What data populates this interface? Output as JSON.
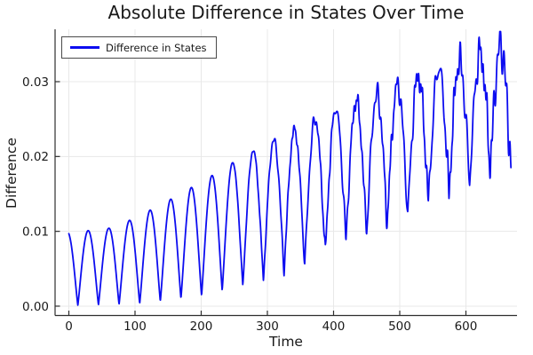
{
  "chart_data": {
    "type": "line",
    "title": "Absolute Difference in States Over Time",
    "xlabel": "Time",
    "ylabel": "Difference",
    "legend": {
      "position": "top-left",
      "entries": [
        {
          "label": "Difference in States",
          "color": "#0d0df0"
        }
      ]
    },
    "background": "#ffffff",
    "grid": true,
    "grid_color": "#e8e8e8",
    "axis_color": "#2e2e2e",
    "text_color": "#191919",
    "line_width": 1.8,
    "xlim": [
      -20.8,
      677.2
    ],
    "ylim": [
      -0.00125,
      0.037
    ],
    "xticks": [
      0,
      100,
      200,
      300,
      400,
      500,
      600
    ],
    "xtick_labels": [
      "0",
      "100",
      "200",
      "300",
      "400",
      "500",
      "600"
    ],
    "yticks": [
      0,
      0.01,
      0.02,
      0.03
    ],
    "ytick_labels": [
      "0.00",
      "0.01",
      "0.02",
      "0.03"
    ],
    "series": [
      {
        "name": "Difference in States",
        "color": "#0d0df0",
        "model": {
          "description": "abs-value oscillation reconstructed from envelopes read off the plot",
          "t_start": 0,
          "t_end": 668,
          "dt": 0.4,
          "period": 31.16,
          "peak_phase": -2,
          "cusp_sharpness": 1.12,
          "peak_envelope": [
            [
              0,
              0.0099
            ],
            [
              30,
              0.0101
            ],
            [
              60,
              0.0104
            ],
            [
              90,
              0.0114
            ],
            [
              120,
              0.0127
            ],
            [
              150,
              0.0141
            ],
            [
              180,
              0.0156
            ],
            [
              210,
              0.0171
            ],
            [
              240,
              0.0188
            ],
            [
              270,
              0.0205
            ],
            [
              300,
              0.022
            ],
            [
              330,
              0.0234
            ],
            [
              360,
              0.0248
            ],
            [
              390,
              0.0263
            ],
            [
              420,
              0.0277
            ],
            [
              450,
              0.0285
            ],
            [
              480,
              0.0296
            ],
            [
              510,
              0.031
            ],
            [
              540,
              0.0322
            ],
            [
              570,
              0.0333
            ],
            [
              600,
              0.0342
            ],
            [
              630,
              0.0353
            ],
            [
              652,
              0.0363
            ],
            [
              668,
              0.0355
            ]
          ],
          "trough_envelope": [
            [
              0,
              0.0001
            ],
            [
              100,
              0.0003
            ],
            [
              133,
              0.0006
            ],
            [
              164,
              0.001
            ],
            [
              195,
              0.0013
            ],
            [
              227,
              0.002
            ],
            [
              258,
              0.0028
            ],
            [
              288,
              0.0035
            ],
            [
              319,
              0.0047
            ],
            [
              350,
              0.0058
            ],
            [
              382,
              0.0074
            ],
            [
              410,
              0.0094
            ],
            [
              442,
              0.0102
            ],
            [
              475,
              0.0118
            ],
            [
              509,
              0.013
            ],
            [
              540,
              0.0148
            ],
            [
              573,
              0.0162
            ],
            [
              601,
              0.0176
            ],
            [
              631,
              0.0197
            ],
            [
              668,
              0.0204
            ]
          ],
          "chaos": {
            "onset": 240,
            "amplitude": 0.003,
            "bias": -0.45,
            "periods": [
              9.7,
              5.33,
              13.1,
              3.9,
              7.7
            ]
          }
        }
      }
    ]
  }
}
